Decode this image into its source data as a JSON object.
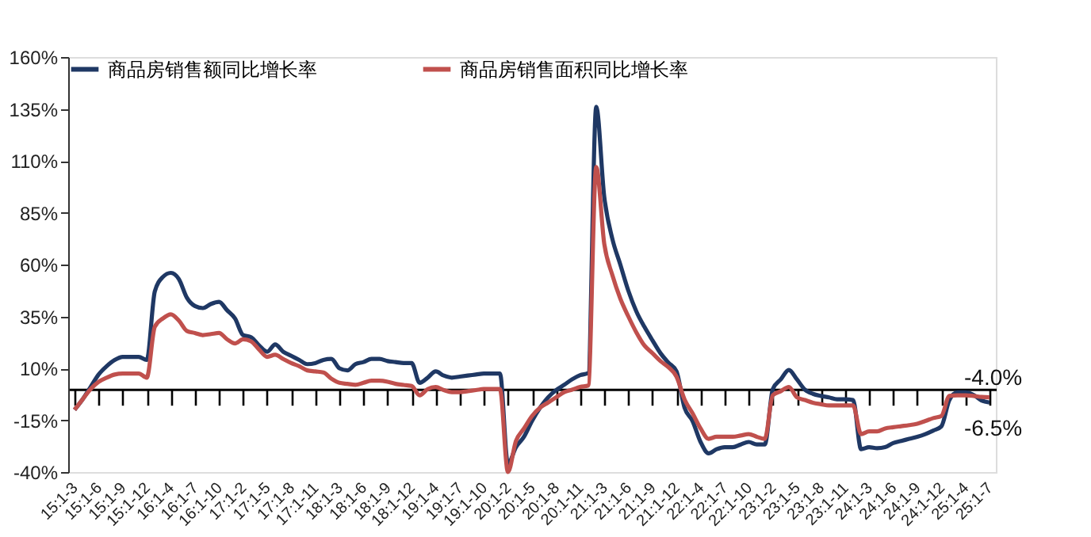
{
  "chart_data": {
    "type": "line",
    "categories": [
      "15:1-3",
      null,
      null,
      "15:1-6",
      null,
      null,
      "15:1-9",
      null,
      null,
      "15:1-12",
      null,
      null,
      "16:1-4",
      null,
      null,
      "16:1-7",
      null,
      null,
      "16:1-10",
      null,
      null,
      "17:1-2",
      null,
      null,
      "17:1-5",
      null,
      null,
      "17:1-8",
      null,
      null,
      "17:1-11",
      null,
      null,
      "18:1-3",
      null,
      null,
      "18:1-6",
      null,
      null,
      "18:1-9",
      null,
      null,
      "18:1-12",
      null,
      null,
      "19:1-4",
      null,
      null,
      "19:1-7",
      null,
      null,
      "19:1-10",
      null,
      null,
      "20:1-2",
      null,
      null,
      "20:1-5",
      null,
      null,
      "20:1-8",
      null,
      null,
      "20:1-11",
      null,
      null,
      "21:1-3",
      null,
      null,
      "21:1-6",
      null,
      null,
      "21:1-9",
      null,
      null,
      "21:1-12",
      null,
      null,
      "22:1-4",
      null,
      null,
      "22:1-7",
      null,
      null,
      "22:1-10",
      null,
      null,
      "23:1-2",
      null,
      null,
      "23:1-5",
      null,
      null,
      "23:1-8",
      null,
      null,
      "23:1-11",
      null,
      null,
      "24:1-3",
      null,
      null,
      "24:1-6",
      null,
      null,
      "24:1-9",
      null,
      null,
      "24:1-12",
      null,
      null,
      "25:1-4",
      null,
      null,
      "25:1-7"
    ],
    "series": [
      {
        "name": "商品房销售额同比增长率",
        "color": "#1f3864",
        "values": [
          -10,
          -5,
          1,
          7,
          11,
          14,
          15.5,
          15.5,
          15.5,
          14,
          47,
          54,
          56,
          53,
          44,
          40,
          39,
          41,
          42,
          38,
          34,
          26,
          25,
          21,
          18,
          21.5,
          18,
          16,
          14,
          12,
          12.5,
          14,
          14.5,
          10,
          9,
          12,
          13,
          14.5,
          14.5,
          13.5,
          13,
          12.5,
          12.5,
          3,
          5.5,
          8.5,
          6.5,
          5.5,
          6,
          6.5,
          7,
          7.5,
          7.5,
          7.5,
          -36,
          -28,
          -23,
          -15.4,
          -9,
          -4,
          -0.5,
          2,
          4.7,
          6.7,
          7.7,
          136,
          92.6,
          72.5,
          60,
          47.4,
          37.4,
          30,
          23.5,
          17.3,
          12.7,
          8.5,
          -9,
          -15.4,
          -25.5,
          -31,
          -29,
          -28,
          -28,
          -26.7,
          -25.5,
          -26.7,
          -26.7,
          0,
          4.7,
          9.2,
          4.7,
          -0.3,
          -2.3,
          -3.3,
          -4,
          -4.9,
          -4.9,
          -5.3,
          -29,
          -28,
          -28.5,
          -28,
          -26,
          -25,
          -24,
          -23,
          -21.7,
          -20,
          -18,
          -5.3,
          -1.6,
          -1.6,
          -2.8,
          -5.5,
          -6.5
        ]
      },
      {
        "name": "商品房销售面积同比增长率",
        "color": "#c0504d",
        "values": [
          -10,
          -5,
          0,
          3.5,
          5.5,
          7,
          7.5,
          7.5,
          7.5,
          5.5,
          30,
          34,
          36,
          33,
          28,
          27,
          26,
          26.5,
          27,
          24,
          22,
          24,
          23,
          19,
          15.5,
          16.5,
          14.5,
          12.5,
          11,
          9,
          8.5,
          8,
          5,
          3,
          2.5,
          2,
          3,
          4,
          4,
          3.5,
          2.5,
          2,
          1.5,
          -3,
          0,
          1,
          -0.5,
          -1.5,
          -1.5,
          -1,
          -0.5,
          0,
          0,
          0,
          -40,
          -25,
          -19,
          -13,
          -9,
          -6.5,
          -4,
          -1.5,
          -0.3,
          1,
          1.7,
          107,
          70,
          55,
          43.6,
          35,
          27.3,
          21,
          17.3,
          13.5,
          10.5,
          6,
          -5,
          -11.7,
          -19,
          -24,
          -23,
          -23,
          -23,
          -22.4,
          -21.7,
          -23,
          -24,
          -3,
          -1,
          1,
          -4,
          -5.3,
          -6.6,
          -7.3,
          -7.9,
          -7.9,
          -7.9,
          -7.9,
          -21.7,
          -20.4,
          -20.4,
          -19,
          -18.4,
          -17.9,
          -17.4,
          -16.7,
          -15.4,
          -14,
          -13,
          -3.3,
          -3,
          -3,
          -3.3,
          -3.8,
          -4.0
        ]
      }
    ],
    "ylim": [
      -40,
      160
    ],
    "yticks": [
      {
        "value": -40,
        "label": "-40%"
      },
      {
        "value": -15,
        "label": "-15%"
      },
      {
        "value": 10,
        "label": "10%"
      },
      {
        "value": 35,
        "label": "35%"
      },
      {
        "value": 60,
        "label": "60%"
      },
      {
        "value": 85,
        "label": "85%"
      },
      {
        "value": 110,
        "label": "110%"
      },
      {
        "value": 135,
        "label": "135%"
      },
      {
        "value": 160,
        "label": "160%"
      }
    ],
    "annotations": [
      {
        "text": "-4.0%",
        "x": "25:1-7",
        "y": -4.0
      },
      {
        "text": "-6.5%",
        "x": "25:1-7",
        "y": -6.5
      }
    ],
    "legend": "top",
    "grid": false,
    "marker": "none",
    "line_style": "solid"
  }
}
